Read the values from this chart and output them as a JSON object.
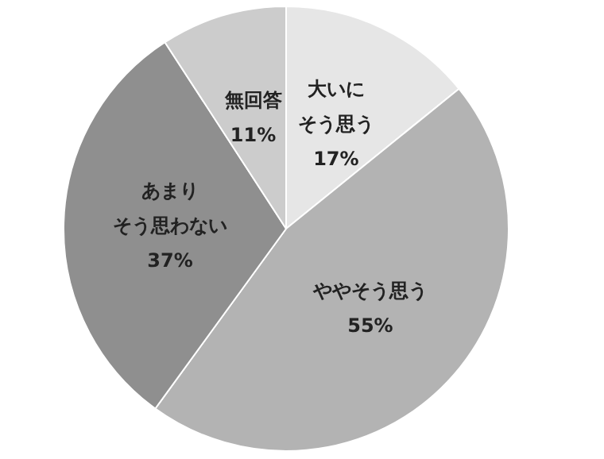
{
  "chart_data": {
    "type": "pie",
    "categories": [
      "大いにそう思う",
      "ややそう思う",
      "あまりそう思わない",
      "無回答"
    ],
    "values": [
      17,
      55,
      37,
      11
    ],
    "value_labels": [
      "17%",
      "55%",
      "37%",
      "11%"
    ],
    "colors": [
      "#e6e6e6",
      "#b3b3b3",
      "#8f8f8f",
      "#cccccc"
    ],
    "legend": false
  }
}
